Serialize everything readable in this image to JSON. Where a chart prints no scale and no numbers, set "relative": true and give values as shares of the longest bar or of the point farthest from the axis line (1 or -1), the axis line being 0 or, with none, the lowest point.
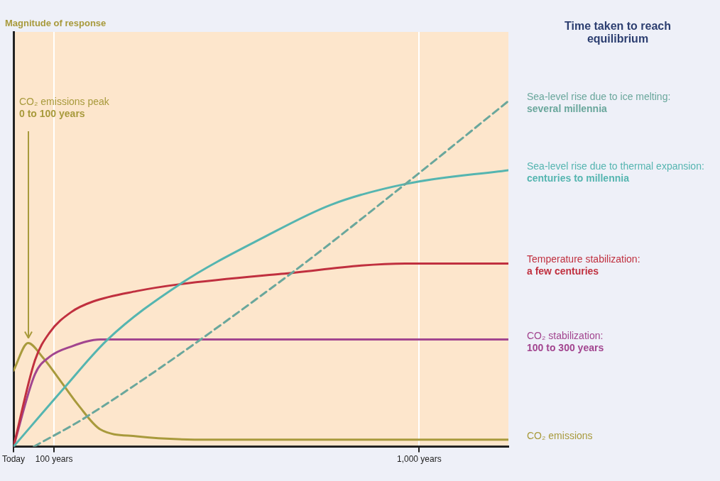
{
  "chart_data": {
    "type": "line",
    "relative": true,
    "legend_title": "Time taken to reach equilibrium",
    "xlim": [
      0,
      1220
    ],
    "xticks": [
      {
        "value": 0,
        "label": "Today"
      },
      {
        "value": 100,
        "label": "100 years"
      },
      {
        "value": 1000,
        "label": "1,000 years"
      }
    ],
    "grid": "x",
    "marker": "none",
    "annotations": [
      "Magnitude of response",
      {
        "text": "CO₂ emissions peak\n0 to 100 years",
        "x": 36,
        "y": 0.3
      }
    ],
    "series": [
      {
        "name": "Sea-level rise due to ice melting:\nseveral millennia",
        "color": "#6aa79c",
        "line_style": "dashed",
        "x": [
          50,
          178,
          660,
          966,
          1220
        ],
        "values": [
          0,
          0.085,
          0.48,
          0.76,
          1
        ]
      },
      {
        "name": "Sea-level rise due to thermal expansion:\ncenturies to millennia",
        "color": "#55b5b0",
        "x": [
          0,
          125,
          232,
          410,
          624,
          783,
          966,
          1220
        ],
        "values": [
          0,
          0.17,
          0.31,
          0.47,
          0.61,
          0.7,
          0.76,
          0.8
        ]
      },
      {
        "name": "Temperature stabilization:\na few centuries",
        "color": "#c0303f",
        "x": [
          0,
          53,
          89,
          143,
          196,
          303,
          410,
          660,
          966,
          1220
        ],
        "values": [
          0,
          0.25,
          0.33,
          0.39,
          0.42,
          0.45,
          0.47,
          0.5,
          0.53,
          0.53
        ]
      },
      {
        "name": "CO₂ stabilization:\n100 to 300 years",
        "color": "#a2458f",
        "x": [
          0,
          53,
          89,
          143,
          214,
          303,
          1220
        ],
        "values": [
          0,
          0.21,
          0.26,
          0.29,
          0.31,
          0.31,
          0.31
        ]
      },
      {
        "name": "CO₂ emissions",
        "color": "#a89a3c",
        "x": [
          0,
          36,
          71,
          116,
          160,
          214,
          303,
          481,
          1220
        ],
        "values": [
          0.22,
          0.3,
          0.26,
          0.19,
          0.12,
          0.05,
          0.03,
          0.02,
          0.02
        ]
      }
    ]
  }
}
